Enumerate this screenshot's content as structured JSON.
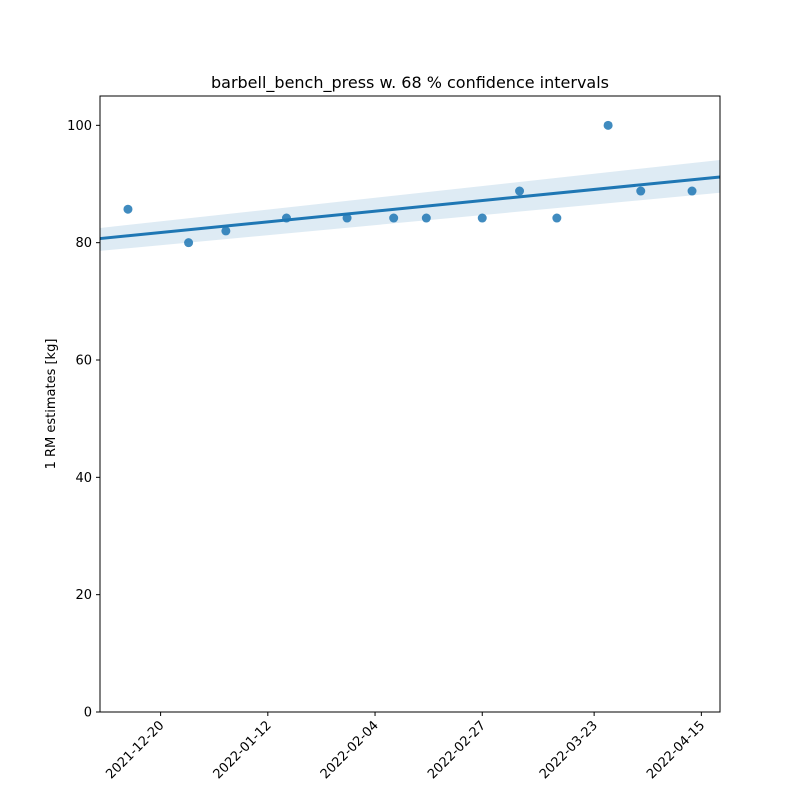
{
  "chart_data": {
    "type": "scatter",
    "title": "barbell_bench_press w. 68 % confidence intervals",
    "ylabel": "1 RM estimates [kg]",
    "xlabel": "",
    "xlim": [
      "2021-12-07",
      "2022-04-19"
    ],
    "ylim": [
      0,
      105
    ],
    "x_ticks": [
      "2021-12-20",
      "2022-01-12",
      "2022-02-04",
      "2022-02-27",
      "2022-03-23",
      "2022-04-15"
    ],
    "y_ticks": [
      0,
      20,
      40,
      60,
      80,
      100
    ],
    "grid": false,
    "colors": {
      "points": "#1f77b4",
      "line": "#1f77b4",
      "band": "#1f77b4"
    },
    "points": [
      {
        "x": "2021-12-13",
        "y": 85.7
      },
      {
        "x": "2021-12-26",
        "y": 80.0
      },
      {
        "x": "2022-01-03",
        "y": 82.0
      },
      {
        "x": "2022-01-16",
        "y": 84.2
      },
      {
        "x": "2022-01-29",
        "y": 84.2
      },
      {
        "x": "2022-02-08",
        "y": 84.2
      },
      {
        "x": "2022-02-15",
        "y": 84.2
      },
      {
        "x": "2022-02-27",
        "y": 84.2
      },
      {
        "x": "2022-03-07",
        "y": 88.8
      },
      {
        "x": "2022-03-15",
        "y": 84.2
      },
      {
        "x": "2022-03-26",
        "y": 100.0
      },
      {
        "x": "2022-04-02",
        "y": 88.8
      },
      {
        "x": "2022-04-13",
        "y": 88.8
      }
    ],
    "regression": {
      "x": [
        "2021-12-07",
        "2022-04-19"
      ],
      "y": [
        80.7,
        91.2
      ],
      "ci_upper": [
        82.5,
        94.1
      ],
      "ci_lower": [
        78.6,
        88.5
      ]
    }
  }
}
